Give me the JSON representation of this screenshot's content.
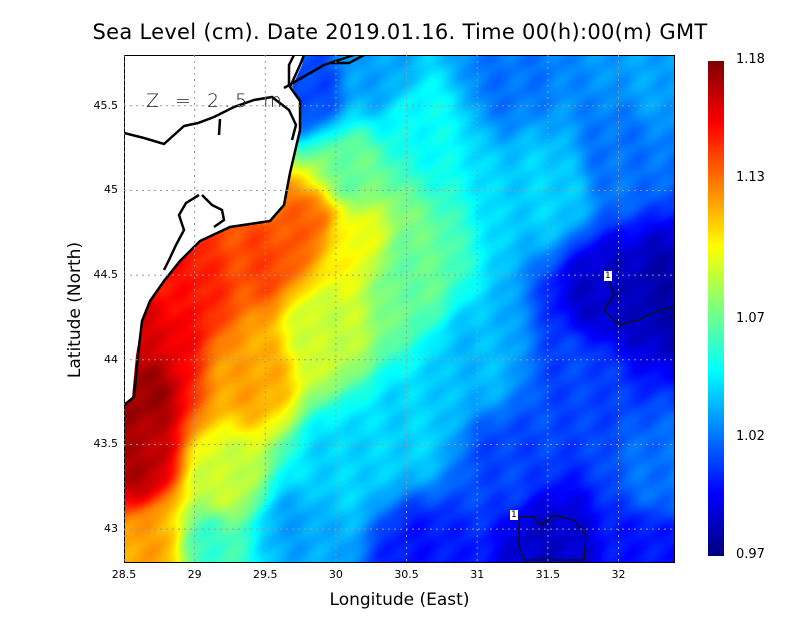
{
  "chart_data": {
    "type": "heatmap",
    "title": "Sea Level (cm). Date 2019.01.16. Time 00(h):00(m) GMT",
    "xlabel": "Longitude (East)",
    "ylabel": "Latitude (North)",
    "annotation": "Z = 2.5 m",
    "xlim": [
      28.5,
      32.4
    ],
    "ylim": [
      42.8,
      45.8
    ],
    "xticks": [
      "28.5",
      "29",
      "29.5",
      "30",
      "30.5",
      "31",
      "31.5",
      "32"
    ],
    "xtick_values": [
      28.5,
      29,
      29.5,
      30,
      30.5,
      31,
      31.5,
      32
    ],
    "yticks": [
      "43",
      "43.5",
      "44",
      "44.5",
      "45",
      "45.5"
    ],
    "ytick_values": [
      43,
      43.5,
      44,
      44.5,
      45,
      45.5
    ],
    "grid": true,
    "colorbar": {
      "min": 0.97,
      "max": 1.18,
      "labels": [
        "1.18",
        "1.13",
        "1.07",
        "1.02",
        "0.97"
      ],
      "label_values": [
        1.18,
        1.13,
        1.07,
        1.02,
        0.97
      ],
      "colormap": "jet"
    },
    "contour_labels": [
      "1",
      "1"
    ],
    "field_samples": [
      [
        28.6,
        43.8,
        1.175
      ],
      [
        28.6,
        43.4,
        1.17
      ],
      [
        28.7,
        44.2,
        1.16
      ],
      [
        28.9,
        44.4,
        1.15
      ],
      [
        29.5,
        44.6,
        1.14
      ],
      [
        29.8,
        44.8,
        1.135
      ],
      [
        30.1,
        44.7,
        1.1
      ],
      [
        29.4,
        43.9,
        1.12
      ],
      [
        29.2,
        43.3,
        1.09
      ],
      [
        29.1,
        42.9,
        1.06
      ],
      [
        28.7,
        42.9,
        1.12
      ],
      [
        30.5,
        44.5,
        1.07
      ],
      [
        30.5,
        43.6,
        1.04
      ],
      [
        31.0,
        44.0,
        1.035
      ],
      [
        31.5,
        45.0,
        1.04
      ],
      [
        30.6,
        45.4,
        1.05
      ],
      [
        30.3,
        45.7,
        1.03
      ],
      [
        30.1,
        45.1,
        1.07
      ],
      [
        29.9,
        44.2,
        1.09
      ],
      [
        30.0,
        43.4,
        1.04
      ],
      [
        29.7,
        43.0,
        1.03
      ],
      [
        31.9,
        44.4,
        0.985
      ],
      [
        32.3,
        44.4,
        0.98
      ],
      [
        31.5,
        42.9,
        0.985
      ],
      [
        30.6,
        42.85,
        1.0
      ],
      [
        31.2,
        43.4,
        1.01
      ],
      [
        32.3,
        43.3,
        1.02
      ],
      [
        32.0,
        45.2,
        1.02
      ],
      [
        31.2,
        45.7,
        1.02
      ],
      [
        29.8,
        45.6,
        1.01
      ],
      [
        32.3,
        45.7,
        1.03
      ],
      [
        31.7,
        43.9,
        1.01
      ],
      [
        32.2,
        42.9,
        1.0
      ]
    ]
  }
}
